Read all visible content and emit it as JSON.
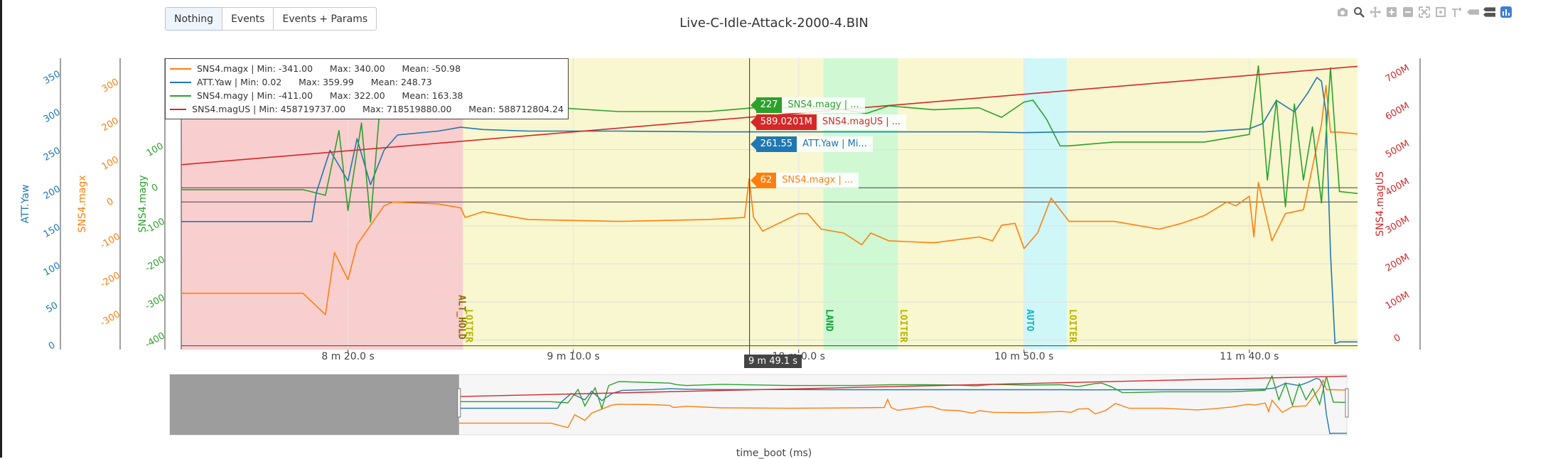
{
  "toolbar": {
    "buttons": [
      "Nothing",
      "Events",
      "Events + Params"
    ]
  },
  "modebar_icons": [
    "camera-icon",
    "zoom-icon",
    "pan-icon",
    "zoom-in-icon",
    "zoom-out-icon",
    "autoscale-icon",
    "reset-axes-icon",
    "spike-lines-icon",
    "hover-closest-icon",
    "hover-compare-icon",
    "plotly-logo-icon"
  ],
  "colors": {
    "magx": "#ff7f0e",
    "yaw": "#1f77b4",
    "magy": "#2ca02c",
    "magUS": "#d62728",
    "mode_althold": "#f4a6a6",
    "mode_loiter": "#f2f0a8",
    "mode_land": "#a8f2ae",
    "mode_auto": "#a9f0f2"
  },
  "chart_data": {
    "type": "line",
    "title": "Live-C-Idle-Attack-2000-4.BIN",
    "xlabel": "time_boot (ms)",
    "x_ticks": [
      "8 m 20.0 s",
      "9 m 10.0 s",
      "10 m 0.0 s",
      "10 m 50.0 s",
      "11 m 40.0 s"
    ],
    "x_tick_seconds": [
      500,
      550,
      600,
      650,
      700
    ],
    "x_range_seconds": [
      463,
      724
    ],
    "cursor_label": "9 m 49.1 s",
    "cursor_seconds": 589.1,
    "axes": [
      {
        "id": "yaw",
        "title": "ATT.Yaw",
        "ticks": [
          0,
          50,
          100,
          150,
          200,
          250,
          300,
          350
        ],
        "range": [
          -5,
          375
        ]
      },
      {
        "id": "magx",
        "title": "SNS4.magx",
        "ticks": [
          -300,
          -200,
          -100,
          0,
          100,
          200,
          300
        ],
        "range": [
          -380,
          370
        ]
      },
      {
        "id": "magy",
        "title": "SNS4.magy",
        "ticks": [
          -400,
          -300,
          -200,
          -100,
          0,
          100
        ],
        "range": [
          -425,
          340
        ]
      },
      {
        "id": "magUS",
        "title": "SNS4.magUS",
        "ticks": [
          0,
          100,
          200,
          300,
          400,
          500,
          600,
          700
        ],
        "tick_labels": [
          "0",
          "100M",
          "200M",
          "300M",
          "400M",
          "500M",
          "600M",
          "700M"
        ],
        "range": [
          -30,
          740
        ]
      }
    ],
    "series": [
      {
        "name": "SNS4.magx",
        "axis": "magx",
        "x": [
          463,
          490,
          495,
          497,
          500,
          502,
          505,
          508,
          510,
          520,
          525,
          526,
          530,
          540,
          560,
          580,
          588,
          589,
          590,
          592,
          600,
          602,
          605,
          610,
          614,
          616,
          620,
          630,
          640,
          643,
          645,
          648,
          650,
          653,
          656,
          660,
          670,
          680,
          685,
          690,
          695,
          697,
          700,
          701,
          702,
          705,
          708,
          712,
          716,
          717,
          718,
          720,
          724
        ],
        "y": [
          -235,
          -235,
          -290,
          -130,
          -200,
          -110,
          -60,
          -10,
          0,
          -5,
          -15,
          -40,
          -25,
          -45,
          -50,
          -45,
          -40,
          60,
          -40,
          -75,
          -30,
          -30,
          -70,
          -80,
          -110,
          -80,
          -100,
          -105,
          -90,
          -100,
          -60,
          -55,
          -120,
          -80,
          10,
          -50,
          -50,
          -70,
          -55,
          -35,
          0,
          -10,
          15,
          -90,
          50,
          -100,
          -30,
          -20,
          200,
          300,
          180,
          180,
          175
        ]
      },
      {
        "name": "ATT.Yaw",
        "axis": "yaw",
        "x": [
          463,
          492,
          493,
          496,
          500,
          502,
          505,
          508,
          511,
          520,
          525,
          530,
          540,
          560,
          580,
          600,
          620,
          640,
          650,
          660,
          680,
          690,
          700,
          703,
          706,
          710,
          713,
          715,
          716,
          717,
          718,
          719,
          720,
          724
        ],
        "y": [
          162,
          162,
          200,
          255,
          215,
          270,
          210,
          255,
          275,
          280,
          285,
          282,
          280,
          280,
          279,
          279,
          279,
          279,
          278,
          279,
          279,
          279,
          283,
          290,
          320,
          305,
          330,
          350,
          345,
          305,
          120,
          3,
          5,
          5
        ]
      },
      {
        "name": "SNS4.magy",
        "axis": "magy",
        "x": [
          463,
          490,
          495,
          498,
          500,
          503,
          505,
          507,
          510,
          525,
          527,
          530,
          540,
          560,
          580,
          590,
          600,
          610,
          615,
          620,
          630,
          640,
          645,
          650,
          652,
          655,
          658,
          660,
          670,
          690,
          700,
          702,
          704,
          706,
          708,
          710,
          712,
          714,
          716,
          718,
          719,
          720,
          724
        ],
        "y": [
          -5,
          -5,
          -20,
          150,
          -60,
          170,
          -90,
          200,
          250,
          230,
          210,
          200,
          215,
          200,
          200,
          210,
          210,
          205,
          195,
          215,
          205,
          210,
          185,
          225,
          230,
          180,
          110,
          110,
          120,
          120,
          140,
          320,
          20,
          230,
          -50,
          220,
          20,
          160,
          -40,
          315,
          150,
          -10,
          -15
        ]
      },
      {
        "name": "SNS4.magUS",
        "axis": "magUS",
        "x": [
          463,
          724
        ],
        "y": [
          458.7,
          718.5
        ]
      }
    ],
    "legend": [
      {
        "name": "SNS4.magx",
        "min": "-341.00",
        "max": "340.00",
        "mean": "-50.98"
      },
      {
        "name": "ATT.Yaw",
        "min": "0.02",
        "max": "359.99",
        "mean": "248.73"
      },
      {
        "name": "SNS4.magy",
        "min": "-411.00",
        "max": "322.00",
        "mean": "163.38"
      },
      {
        "name": "SNS4.magUS",
        "min": "458719737.00",
        "max": "718519880.00",
        "mean": "588712804.24"
      }
    ],
    "mode_regions": [
      {
        "label": "ALT_HOLD",
        "start": 463,
        "end": 525.5,
        "color_key": "mode_althold"
      },
      {
        "label": "LOITER",
        "start": 525.5,
        "end": 605.5,
        "color_key": "mode_loiter"
      },
      {
        "label": "LAND",
        "start": 605.5,
        "end": 622,
        "color_key": "mode_land"
      },
      {
        "label": "LOITER",
        "start": 622,
        "end": 650,
        "color_key": "mode_loiter"
      },
      {
        "label": "AUTO",
        "start": 650,
        "end": 659.5,
        "color_key": "mode_auto"
      },
      {
        "label": "LOITER",
        "start": 659.5,
        "end": 724,
        "color_key": "mode_loiter"
      }
    ],
    "hover_values": [
      {
        "value": "227",
        "name": "SNS4.magy | ...",
        "color_key": "magy"
      },
      {
        "value": "589.0201M",
        "name": "SNS4.magUS | ...",
        "color_key": "magUS"
      },
      {
        "value": "261.55",
        "name": "ATT.Yaw | Mi...",
        "color_key": "yaw"
      },
      {
        "value": "62",
        "name": "SNS4.magx | ...",
        "color_key": "magx"
      }
    ]
  }
}
